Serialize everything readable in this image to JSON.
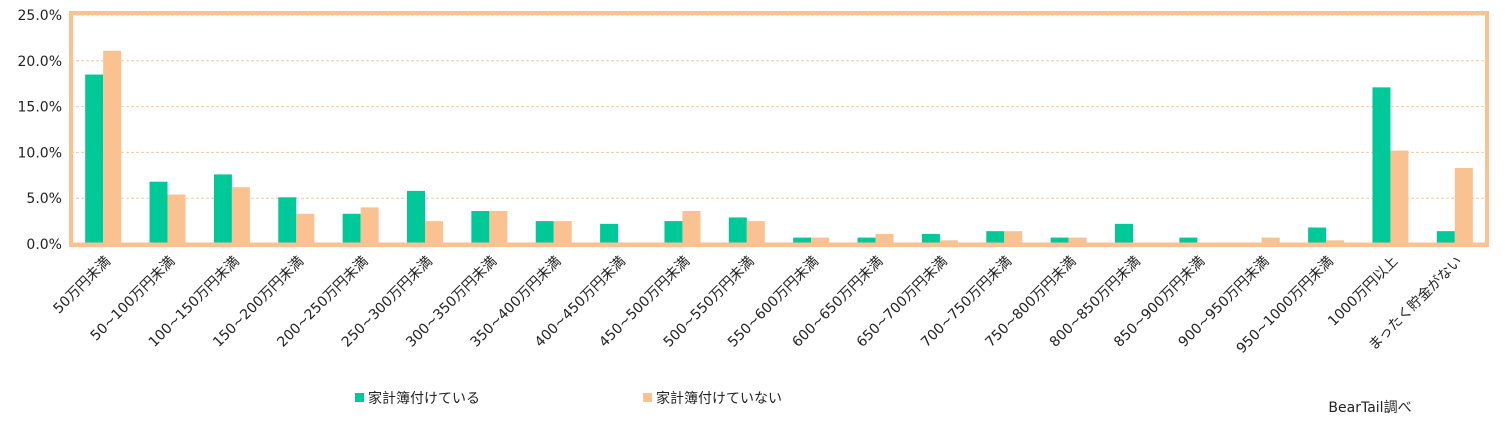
{
  "chart_data": {
    "type": "bar",
    "categories": [
      "50万円未満",
      "50~100万円未満",
      "100~150万円未満",
      "150~200万円未満",
      "200~250万円未満",
      "250~300万円未満",
      "300~350万円未満",
      "350~400万円未満",
      "400~450万円未満",
      "450~500万円未満",
      "500~550万円未満",
      "550~600万円未満",
      "600~650万円未満",
      "650~700万円未満",
      "700~750万円未満",
      "750~800万円未満",
      "800~850万円未満",
      "850~900万円未満",
      "900~950万円未満",
      "950~1000万円未満",
      "1000万円以上",
      "まったく貯金がない"
    ],
    "series": [
      {
        "name": "家計簿付けている",
        "color": "#00c999",
        "values": [
          18.5,
          6.8,
          7.6,
          5.1,
          3.3,
          5.8,
          3.6,
          2.5,
          2.2,
          2.5,
          2.9,
          0.7,
          0.7,
          1.1,
          1.4,
          0.7,
          2.2,
          0.7,
          0,
          1.8,
          17.1,
          1.4
        ]
      },
      {
        "name": "家計簿付けていない",
        "color": "#f9c290",
        "values": [
          21.1,
          5.4,
          6.2,
          3.3,
          4.0,
          2.5,
          3.6,
          2.5,
          0,
          3.6,
          2.5,
          0.7,
          1.1,
          0.4,
          1.4,
          0.7,
          0,
          0,
          0.7,
          0.4,
          10.2,
          8.3
        ]
      }
    ],
    "ylim": [
      0,
      25
    ],
    "yticks": [
      {
        "value": 0,
        "label": "0.0%"
      },
      {
        "value": 5,
        "label": "5.0%"
      },
      {
        "value": 10,
        "label": "10.0%"
      },
      {
        "value": 15,
        "label": "15.0%"
      },
      {
        "value": 20,
        "label": "20.0%"
      },
      {
        "value": 25,
        "label": "25.0%"
      }
    ],
    "grid": true,
    "source": "BearTail調べ"
  }
}
